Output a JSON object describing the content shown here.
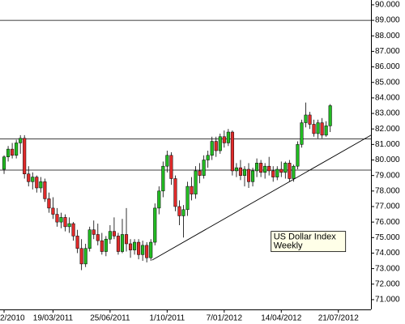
{
  "chart_data": {
    "type": "candlestick",
    "categories": [
      "2/2010",
      null,
      null,
      null,
      null,
      null,
      null,
      null,
      null,
      null,
      null,
      null,
      "19/03/2011",
      null,
      null,
      null,
      null,
      null,
      null,
      null,
      null,
      null,
      null,
      null,
      null,
      null,
      "25/06/2011",
      null,
      null,
      null,
      null,
      null,
      null,
      null,
      null,
      null,
      null,
      null,
      null,
      null,
      "1/10/2011",
      null,
      null,
      null,
      null,
      null,
      null,
      null,
      null,
      null,
      null,
      null,
      null,
      null,
      "7/01/2012",
      null,
      null,
      null,
      null,
      null,
      null,
      null,
      null,
      null,
      null,
      null,
      null,
      null,
      "14/04/2012",
      null,
      null,
      null,
      null,
      null,
      null,
      null,
      null,
      null,
      null,
      null,
      null,
      null,
      "21/07/2012"
    ],
    "open": [
      79.4,
      80.2,
      80.7,
      80.3,
      81.1,
      81.4,
      79.1,
      78.6,
      78.9,
      78.2,
      78.6,
      77.5,
      76.9,
      76.5,
      76.0,
      76.3,
      75.7,
      75.9,
      75.1,
      74.3,
      73.3,
      74.3,
      75.5,
      75.2,
      74.8,
      74.1,
      74.9,
      75.4,
      75.1,
      74.1,
      75.2,
      74.6,
      74.2,
      74.7,
      73.9,
      74.5,
      73.7,
      74.7,
      76.9,
      78.0,
      79.6,
      80.3,
      78.8,
      77.0,
      76.4,
      76.8,
      78.3,
      77.8,
      79.3,
      79.0,
      80.0,
      80.3,
      81.2,
      80.6,
      81.5,
      81.1,
      81.8,
      79.3,
      79.5,
      79.0,
      79.4,
      78.6,
      79.3,
      79.8,
      79.2,
      79.6,
      79.3,
      78.9,
      79.4,
      79.2,
      79.8,
      78.8,
      79.6,
      81.0,
      82.4,
      82.9,
      82.3,
      81.7,
      82.4,
      81.6,
      82.2,
      null,
      null
    ],
    "high": [
      80.3,
      80.9,
      81.1,
      81.3,
      81.6,
      81.6,
      79.6,
      79.2,
      79.0,
      78.9,
      78.8,
      77.9,
      77.6,
      76.9,
      76.6,
      76.5,
      76.3,
      76.0,
      75.5,
      74.9,
      74.6,
      75.7,
      76.1,
      75.9,
      75.3,
      75.1,
      75.8,
      76.3,
      75.3,
      76.2,
      76.9,
      74.9,
      74.9,
      74.9,
      74.8,
      74.7,
      74.9,
      77.2,
      78.3,
      79.9,
      80.6,
      80.5,
      79.0,
      77.4,
      77.1,
      78.6,
      78.9,
      79.6,
      79.8,
      80.3,
      80.6,
      81.5,
      81.5,
      81.7,
      81.9,
      82.0,
      81.9,
      79.8,
      80.0,
      79.6,
      79.8,
      79.5,
      80.1,
      80.0,
      79.8,
      80.2,
      79.6,
      79.6,
      79.9,
      79.9,
      80.0,
      79.7,
      81.2,
      82.6,
      83.7,
      83.1,
      82.6,
      82.6,
      82.7,
      82.5,
      83.6,
      null,
      null
    ],
    "low": [
      79.1,
      79.9,
      80.1,
      80.1,
      80.4,
      78.8,
      78.3,
      78.1,
      77.9,
      77.9,
      77.3,
      76.6,
      76.2,
      75.7,
      75.6,
      75.4,
      75.3,
      74.8,
      74.0,
      72.9,
      73.1,
      74.1,
      74.9,
      74.5,
      73.9,
      73.8,
      74.6,
      74.9,
      73.9,
      74.0,
      74.1,
      73.7,
      73.9,
      73.6,
      73.5,
      73.4,
      73.5,
      74.5,
      76.5,
      77.6,
      79.2,
      78.4,
      76.7,
      75.8,
      75.0,
      76.4,
      77.4,
      77.5,
      78.5,
      78.8,
      79.5,
      80.0,
      80.2,
      80.4,
      80.8,
      80.9,
      79.0,
      78.9,
      78.7,
      78.3,
      78.2,
      78.3,
      78.9,
      78.9,
      78.8,
      79.0,
      78.6,
      78.7,
      78.9,
      78.8,
      78.6,
      78.6,
      79.4,
      80.8,
      82.1,
      82.0,
      81.5,
      81.4,
      81.4,
      81.5,
      81.8,
      null,
      null
    ],
    "close": [
      80.2,
      80.7,
      80.3,
      81.1,
      81.4,
      79.1,
      78.6,
      78.9,
      78.2,
      78.6,
      77.5,
      76.9,
      76.5,
      76.0,
      76.3,
      75.7,
      75.9,
      75.1,
      74.3,
      73.3,
      74.3,
      75.5,
      75.2,
      74.8,
      74.1,
      74.9,
      75.4,
      75.1,
      74.1,
      75.2,
      74.6,
      74.2,
      74.7,
      73.9,
      74.5,
      73.7,
      74.7,
      76.9,
      78.0,
      79.6,
      80.3,
      78.8,
      77.0,
      76.4,
      76.8,
      78.3,
      77.8,
      79.3,
      79.0,
      80.0,
      80.3,
      81.2,
      80.6,
      81.5,
      81.1,
      81.8,
      79.3,
      79.5,
      79.0,
      79.4,
      78.6,
      79.3,
      79.8,
      79.2,
      79.6,
      79.3,
      78.9,
      79.4,
      79.2,
      79.8,
      78.8,
      79.6,
      81.0,
      82.4,
      82.9,
      82.3,
      81.7,
      82.4,
      81.6,
      82.2,
      83.5,
      null,
      null
    ],
    "up_color": "#22bb22",
    "down_color": "#e02a2a",
    "xlim": [
      -1,
      90
    ],
    "ylim": [
      70.37,
      90.31
    ],
    "yticks": [
      {
        "value": 71,
        "label": "71.000"
      },
      {
        "value": 72,
        "label": "72.000"
      },
      {
        "value": 73,
        "label": "73.000"
      },
      {
        "value": 74,
        "label": "74.000"
      },
      {
        "value": 75,
        "label": "75.000"
      },
      {
        "value": 76,
        "label": "76.000"
      },
      {
        "value": 77,
        "label": "77.000"
      },
      {
        "value": 78,
        "label": "78.000"
      },
      {
        "value": 79,
        "label": "79.000"
      },
      {
        "value": 80,
        "label": "80.000"
      },
      {
        "value": 81,
        "label": "81.000"
      },
      {
        "value": 82,
        "label": "82.000"
      },
      {
        "value": 83,
        "label": "83.000"
      },
      {
        "value": 84,
        "label": "84.000"
      },
      {
        "value": 85,
        "label": "85.000"
      },
      {
        "value": 86,
        "label": "86.000"
      },
      {
        "value": 87,
        "label": "87.000"
      },
      {
        "value": 88,
        "label": "88.000"
      },
      {
        "value": 89,
        "label": "89.000"
      },
      {
        "value": 90,
        "label": "90.000"
      }
    ],
    "hlines": [
      89.0,
      81.35,
      79.35
    ],
    "trendline": {
      "x": [
        36.3,
        90
      ],
      "y": [
        73.55,
        81.6
      ]
    },
    "annotation": {
      "lines": [
        "US Dollar Index",
        "Weekly"
      ],
      "x": 65.5,
      "y": 75.4
    }
  }
}
